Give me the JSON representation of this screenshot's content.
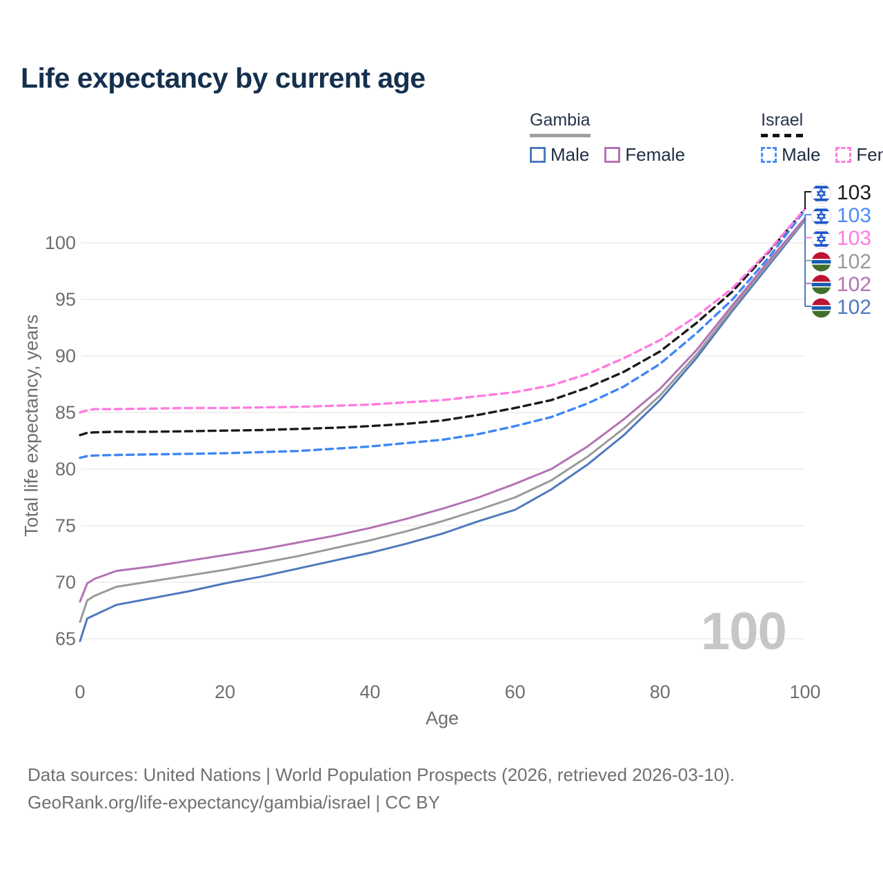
{
  "title": "Life expectancy by current age",
  "legend": {
    "groups": [
      {
        "id": "gambia",
        "name": "Gambia",
        "line_style": "solid",
        "line_color": "#9e9e9e",
        "items": [
          {
            "id": "gambia-male",
            "label": "Male",
            "color": "#4e79bd",
            "dash": false
          },
          {
            "id": "gambia-female",
            "label": "Female",
            "color": "#b472b4",
            "dash": false
          }
        ]
      },
      {
        "id": "israel",
        "name": "Israel",
        "line_style": "dashed",
        "line_color": "#111111",
        "items": [
          {
            "id": "israel-male",
            "label": "Male",
            "color": "#4d8af8",
            "dash": true
          },
          {
            "id": "israel-female",
            "label": "Female",
            "color": "#ff7be0",
            "dash": true
          }
        ]
      }
    ]
  },
  "y_axis": {
    "title": "Total life expectancy, years",
    "ticks": [
      65,
      70,
      75,
      80,
      85,
      90,
      95,
      100
    ]
  },
  "x_axis": {
    "title": "Age",
    "ticks": [
      0,
      20,
      40,
      60,
      80,
      100
    ]
  },
  "end_labels": [
    {
      "country": "israel",
      "value": "103",
      "color": "#1a1a1a"
    },
    {
      "country": "israel",
      "value": "103",
      "color": "#4d8af8"
    },
    {
      "country": "israel",
      "value": "103",
      "color": "#ff7be0"
    },
    {
      "country": "gambia",
      "value": "102",
      "color": "#9a9a9a"
    },
    {
      "country": "gambia",
      "value": "102",
      "color": "#b472b4"
    },
    {
      "country": "gambia",
      "value": "102",
      "color": "#4e79bd"
    }
  ],
  "watermark": "100",
  "footer": {
    "line1": "Data sources: United Nations | World Population Prospects (2026, retrieved 2026-03-10).",
    "line2": "GeoRank.org/life-expectancy/gambia/israel | CC BY"
  },
  "chart_data": {
    "type": "line",
    "title": "Life expectancy by current age",
    "xlabel": "Age",
    "ylabel": "Total life expectancy, years",
    "xlim": [
      0,
      100
    ],
    "ylim": [
      64,
      104
    ],
    "grid": true,
    "legend_position": "top-right",
    "x": [
      0,
      1,
      2,
      5,
      10,
      15,
      20,
      25,
      30,
      35,
      40,
      45,
      50,
      55,
      60,
      65,
      70,
      75,
      80,
      85,
      90,
      95,
      100
    ],
    "series": [
      {
        "id": "israel-both",
        "name": "Israel (both sexes)",
        "country": "Israel",
        "sex": "both",
        "color": "#1a1a1a",
        "dash": true,
        "width": 3.4,
        "y": [
          83.0,
          83.2,
          83.25,
          83.3,
          83.3,
          83.35,
          83.4,
          83.45,
          83.55,
          83.65,
          83.8,
          84.0,
          84.3,
          84.8,
          85.4,
          86.1,
          87.2,
          88.6,
          90.4,
          92.9,
          95.7,
          99.2,
          103.0
        ]
      },
      {
        "id": "israel-male",
        "name": "Israel Male",
        "country": "Israel",
        "sex": "male",
        "color": "#3d87f5",
        "dash": true,
        "width": 3.4,
        "y": [
          81.0,
          81.15,
          81.2,
          81.25,
          81.3,
          81.35,
          81.4,
          81.5,
          81.6,
          81.8,
          82.0,
          82.3,
          82.6,
          83.1,
          83.8,
          84.6,
          85.8,
          87.3,
          89.3,
          92.0,
          95.0,
          98.7,
          102.9
        ]
      },
      {
        "id": "israel-female",
        "name": "Israel Female",
        "country": "Israel",
        "sex": "female",
        "color": "#ff7be0",
        "dash": true,
        "width": 3.4,
        "y": [
          85.0,
          85.2,
          85.3,
          85.3,
          85.35,
          85.4,
          85.4,
          85.45,
          85.5,
          85.6,
          85.7,
          85.9,
          86.1,
          86.45,
          86.8,
          87.4,
          88.4,
          89.8,
          91.4,
          93.5,
          96.0,
          99.3,
          103.0
        ]
      },
      {
        "id": "gambia-male",
        "name": "Gambia Male",
        "country": "Gambia",
        "sex": "male",
        "color": "#4e79bd",
        "dash": false,
        "width": 3,
        "y": [
          64.8,
          66.8,
          67.1,
          68.0,
          68.6,
          69.2,
          69.9,
          70.5,
          71.2,
          71.9,
          72.6,
          73.4,
          74.3,
          75.4,
          76.4,
          78.2,
          80.4,
          83.0,
          86.1,
          89.8,
          94.0,
          98.0,
          102.0
        ]
      },
      {
        "id": "gambia-both",
        "name": "Gambia (both sexes)",
        "country": "Gambia",
        "sex": "both",
        "color": "#9a9a9a",
        "dash": false,
        "width": 3,
        "y": [
          66.5,
          68.4,
          68.8,
          69.6,
          70.1,
          70.6,
          71.1,
          71.7,
          72.3,
          73.0,
          73.7,
          74.5,
          75.4,
          76.4,
          77.5,
          79.0,
          81.1,
          83.6,
          86.5,
          90.1,
          94.2,
          98.2,
          102.1
        ]
      },
      {
        "id": "gambia-female",
        "name": "Gambia Female",
        "country": "Gambia",
        "sex": "female",
        "color": "#b472b4",
        "dash": false,
        "width": 3,
        "y": [
          68.3,
          69.9,
          70.3,
          71.0,
          71.4,
          71.9,
          72.4,
          72.9,
          73.5,
          74.1,
          74.8,
          75.6,
          76.5,
          77.5,
          78.7,
          80.0,
          82.0,
          84.4,
          87.1,
          90.5,
          94.5,
          98.4,
          102.2
        ]
      }
    ]
  }
}
